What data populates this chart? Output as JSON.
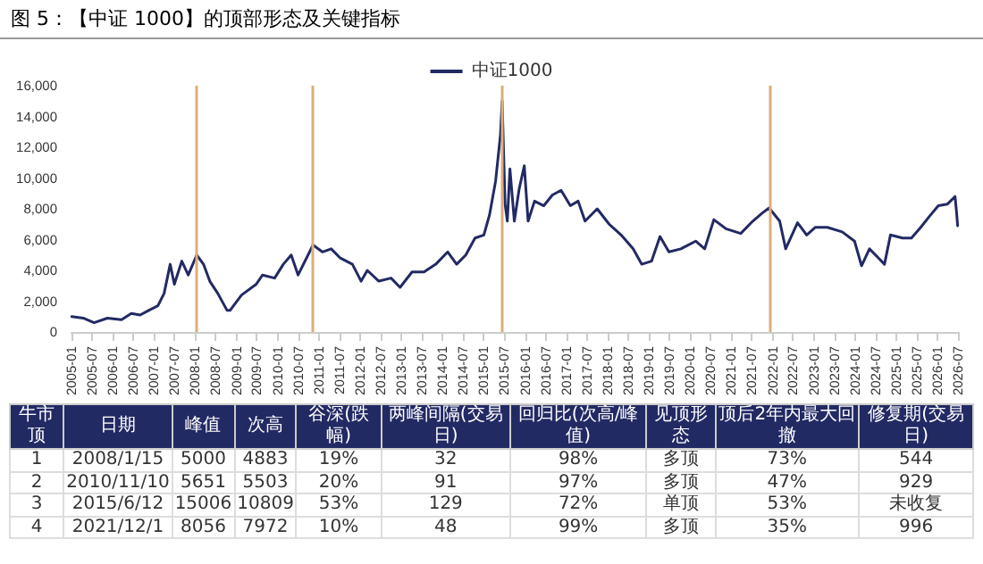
{
  "chart_data": {
    "type": "line",
    "title": "图 5：【中证 1000】的顶部形态及关键指标",
    "x": [
      "2005-01-04",
      "2005-04-15",
      "2005-07-20",
      "2005-11-15",
      "2006-03-20",
      "2006-06-15",
      "2006-09-01",
      "2006-11-15",
      "2007-02-05",
      "2007-04-01",
      "2007-05-25",
      "2007-07-01",
      "2007-09-05",
      "2007-11-01",
      "2008-01-15",
      "2008-03-15",
      "2008-05-10",
      "2008-07-20",
      "2008-10-10",
      "2008-11-05",
      "2009-02-15",
      "2009-06-25",
      "2009-08-20",
      "2009-12-05",
      "2010-02-20",
      "2010-05-01",
      "2010-07-01",
      "2010-11-10",
      "2011-02-01",
      "2011-04-20",
      "2011-07-10",
      "2011-10-25",
      "2012-01-10",
      "2012-03-05",
      "2012-06-15",
      "2012-10-01",
      "2012-12-20",
      "2013-04-05",
      "2013-07-20",
      "2013-11-01",
      "2014-02-15",
      "2014-05-05",
      "2014-07-25",
      "2014-10-15",
      "2015-01-01",
      "2015-02-20",
      "2015-04-15",
      "2015-05-28",
      "2015-06-12",
      "2015-07-08",
      "2015-07-28",
      "2015-08-20",
      "2015-09-28",
      "2015-11-10",
      "2015-12-25",
      "2016-01-28",
      "2016-03-25",
      "2016-06-15",
      "2016-08-30",
      "2016-11-15",
      "2017-02-05",
      "2017-04-15",
      "2017-06-15",
      "2017-10-01",
      "2018-01-15",
      "2018-05-01",
      "2018-08-15",
      "2018-10-30",
      "2019-01-25",
      "2019-04-10",
      "2019-06-28",
      "2019-10-12",
      "2020-02-20",
      "2020-05-10",
      "2020-07-30",
      "2020-11-15",
      "2021-03-25",
      "2021-07-10",
      "2021-09-28",
      "2021-12-01",
      "2022-03-05",
      "2022-04-27",
      "2022-08-10",
      "2022-10-30",
      "2023-01-15",
      "2023-05-01",
      "2023-09-10",
      "2023-12-28",
      "2024-02-28",
      "2024-05-08",
      "2024-07-28",
      "2024-09-18",
      "2024-11-10",
      "2025-02-25",
      "2025-05-15",
      "2025-08-05",
      "2025-10-20",
      "2026-01-08",
      "2026-03-28",
      "2026-06-05",
      "2026-06-18",
      "2026-06-28"
    ],
    "series": [
      {
        "name": "中证1000",
        "color": "#222a64",
        "values": [
          1000,
          900,
          600,
          900,
          800,
          1200,
          1100,
          1400,
          1700,
          2500,
          4400,
          3100,
          4600,
          3700,
          5000,
          4400,
          3300,
          2500,
          1400,
          1400,
          2400,
          3100,
          3700,
          3500,
          4400,
          5000,
          3700,
          5651,
          5200,
          5400,
          4800,
          4400,
          3300,
          4000,
          3300,
          3500,
          2900,
          3900,
          3900,
          4400,
          5200,
          4400,
          5000,
          6100,
          6300,
          7600,
          9800,
          12800,
          15006,
          8300,
          7200,
          10600,
          7200,
          9300,
          10800,
          7200,
          8500,
          8200,
          8900,
          9200,
          8200,
          8500,
          7200,
          8000,
          7000,
          6300,
          5400,
          4400,
          4600,
          6200,
          5200,
          5400,
          5900,
          5400,
          7300,
          6700,
          6400,
          7200,
          7700,
          8056,
          7200,
          5400,
          7100,
          6300,
          6800,
          6800,
          6500,
          5900,
          4300,
          5400,
          4800,
          4400,
          6300,
          6100,
          6100,
          6800,
          7500,
          8200,
          8300,
          8800,
          7800,
          6900
        ]
      }
    ],
    "ylim": [
      0,
      16000
    ],
    "yticks": [
      0,
      {
        "value": 2000,
        "label": "2,000"
      },
      {
        "value": 4000,
        "label": "4,000"
      },
      {
        "value": 6000,
        "label": "6,000"
      },
      {
        "value": 8000,
        "label": "8,000"
      },
      {
        "value": 10000,
        "label": "10,000"
      },
      {
        "value": 12000,
        "label": "12,000"
      },
      {
        "value": 14000,
        "label": "14,000"
      },
      {
        "value": 16000,
        "label": "16,000"
      }
    ],
    "xlim": [
      "2005-01",
      "2026-07"
    ],
    "xticks": [
      "2005-01",
      "2005-07",
      "2006-01",
      "2006-07",
      "2007-01",
      "2007-07",
      "2008-01",
      "2008-07",
      "2009-01",
      "2009-07",
      "2010-01",
      "2010-07",
      "2011-01",
      "2011-07",
      "2012-01",
      "2012-07",
      "2013-01",
      "2013-07",
      "2014-01",
      "2014-07",
      "2015-01",
      "2015-07",
      "2016-01",
      "2016-07",
      "2017-01",
      "2017-07",
      "2018-01",
      "2018-07",
      "2019-01",
      "2019-07",
      "2020-01",
      "2020-07",
      "2021-01",
      "2021-07",
      "2022-01",
      "2022-07",
      "2023-01",
      "2023-07",
      "2024-01",
      "2024-07",
      "2025-01",
      "2025-07",
      "2026-01",
      "2026-07"
    ],
    "ref_lines": [
      {
        "axis": "x",
        "value": "2008-01-15",
        "color": "#dcae7c"
      },
      {
        "axis": "x",
        "value": "2010-11-10",
        "color": "#dcae7c"
      },
      {
        "axis": "x",
        "value": "2015-06-12",
        "color": "#dcae7c"
      },
      {
        "axis": "x",
        "value": "2021-12-01",
        "color": "#dcae7c"
      }
    ],
    "legend": "top",
    "grid": false,
    "marker": "none",
    "line_style": "solid",
    "annotations": [
      "牛市顶",
      "日期",
      "峰值",
      "次高",
      "谷深(跌幅)",
      "两峰间隔(交易日)",
      "回归比(次高/峰值)",
      "见顶形态",
      "顶后2年内最大回撤",
      "修复期(交易日)",
      "1",
      "2008/1/15",
      "5000",
      "4883",
      "19%",
      "32",
      "98%",
      "多顶",
      "73%",
      "544",
      "2",
      "2010/11/10",
      "5651",
      "5503",
      "20%",
      "91",
      "97%",
      "多顶",
      "47%",
      "929",
      "3",
      "2015/6/12",
      "15006",
      "10809",
      "53%",
      "129",
      "72%",
      "单顶",
      "53%",
      "未收复",
      "4",
      "2021/12/1",
      "8056",
      "7972",
      "10%",
      "48",
      "99%",
      "多顶",
      "35%",
      "996"
    ]
  }
}
